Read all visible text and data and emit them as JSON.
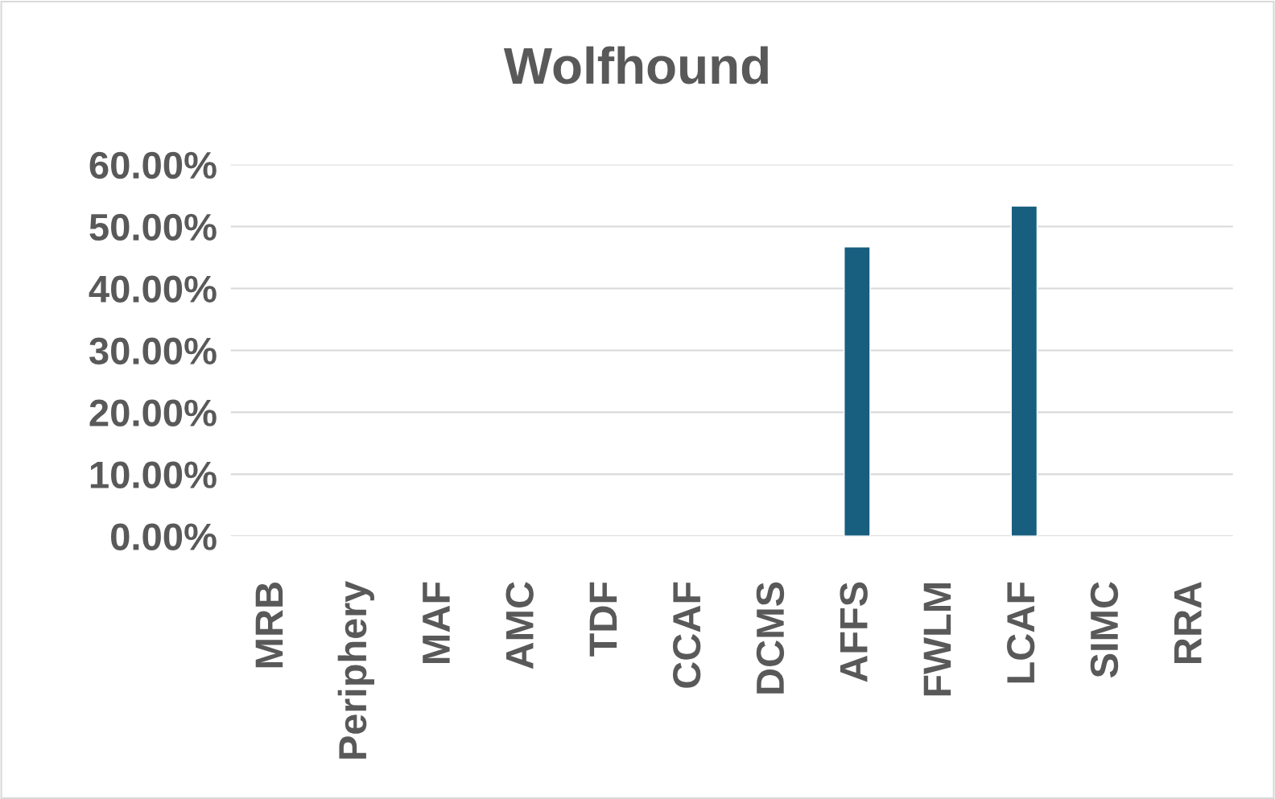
{
  "chart_data": {
    "type": "bar",
    "title": "Wolfhound",
    "categories": [
      "MRB",
      "Periphery",
      "MAF",
      "AMC",
      "TDF",
      "CCAF",
      "DCMS",
      "AFFS",
      "FWLM",
      "LCAF",
      "SIMC",
      "RRA"
    ],
    "values": [
      null,
      null,
      null,
      null,
      null,
      null,
      null,
      46.7,
      null,
      53.3,
      null,
      null
    ],
    "color": "#175e7f",
    "ylim": [
      0,
      60
    ],
    "yticks": [
      {
        "value": 0,
        "label": "0.00%"
      },
      {
        "value": 10,
        "label": "10.00%"
      },
      {
        "value": 20,
        "label": "20.00%"
      },
      {
        "value": 30,
        "label": "30.00%"
      },
      {
        "value": 40,
        "label": "40.00%"
      },
      {
        "value": 50,
        "label": "50.00%"
      },
      {
        "value": 60,
        "label": "60.00%"
      }
    ],
    "grid": "y",
    "legend": false
  }
}
